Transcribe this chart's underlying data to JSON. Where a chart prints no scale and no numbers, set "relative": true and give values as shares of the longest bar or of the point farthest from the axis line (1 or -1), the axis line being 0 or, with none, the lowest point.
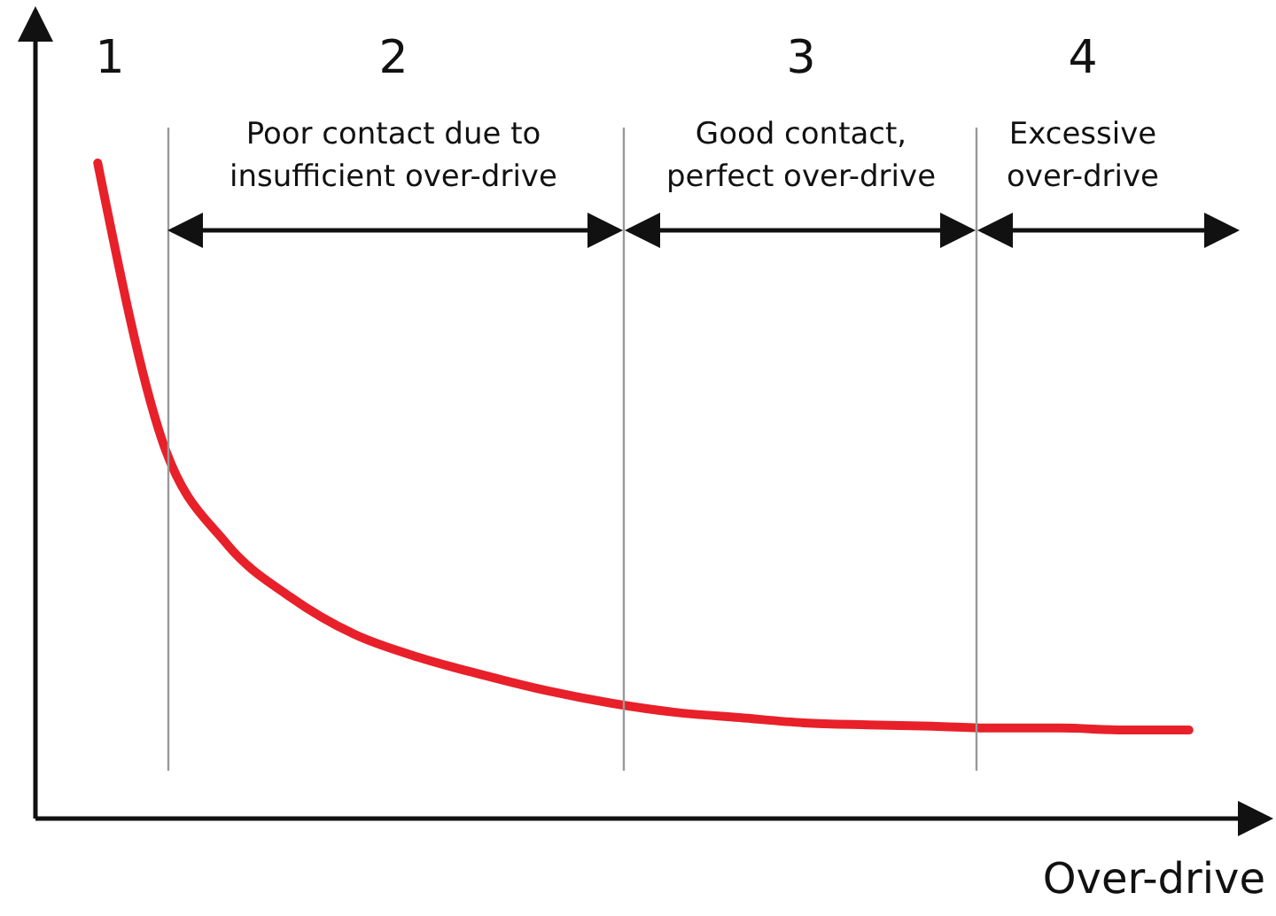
{
  "chart_data": {
    "type": "line",
    "relative": true,
    "xlabel": "Over-drive",
    "marker": "none",
    "grid": false,
    "legend": false,
    "tick_labels": false,
    "categories": [
      null,
      null,
      null,
      null,
      null,
      null,
      null,
      null,
      null,
      null,
      null,
      null,
      null,
      null,
      null,
      null,
      null,
      null
    ],
    "series": [
      {
        "color": "#e8202a",
        "values": [
          1,
          0.578,
          0.42,
          0.338,
          0.281,
          0.246,
          0.219,
          0.195,
          0.176,
          0.162,
          0.154,
          0.146,
          0.143,
          0.141,
          0.138,
          0.138,
          0.135,
          0.135
        ]
      }
    ],
    "annotations": [
      "1",
      "2",
      "3",
      "4",
      "Poor contact due to insufficient over-drive",
      "Good contact, perfect over-drive",
      "Excessive over-drive"
    ]
  }
}
